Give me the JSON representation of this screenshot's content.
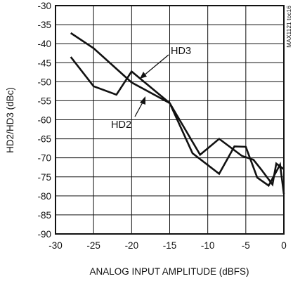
{
  "chart_data": {
    "type": "line",
    "xlabel": "ANALOG INPUT AMPLITUDE (dBFS)",
    "ylabel": "HD2/HD3 (dBc)",
    "xlim": [
      -30,
      0
    ],
    "ylim": [
      -90,
      -30
    ],
    "x_ticks": [
      -30,
      -25,
      -20,
      -15,
      -10,
      -5,
      0
    ],
    "x_tick_labels": [
      "-30",
      "-25",
      "-20",
      "-15",
      "-10",
      "-5",
      "0"
    ],
    "y_ticks": [
      -30,
      -35,
      -40,
      -45,
      -50,
      -55,
      -60,
      -65,
      -70,
      -75,
      -80,
      -85,
      -90
    ],
    "y_tick_labels": [
      "-30",
      "-35",
      "-40",
      "-45",
      "-50",
      "-55",
      "-60",
      "-65",
      "-70",
      "-75",
      "-80",
      "-85",
      "-90"
    ],
    "grid": true,
    "note": "MAX1121 toc16",
    "series": [
      {
        "name": "HD3",
        "x": [
          -28,
          -25,
          -20,
          -15,
          -11,
          -8.5,
          -5.5,
          -4,
          -3,
          -1.5,
          -1,
          0
        ],
        "y": [
          -37.2,
          -41.2,
          -50.2,
          -55.6,
          -69.2,
          -65.0,
          -69.5,
          -70.5,
          -73.0,
          -77.0,
          -71.5,
          -73.0
        ]
      },
      {
        "name": "HD2",
        "x": [
          -28,
          -25,
          -22,
          -20,
          -15,
          -12,
          -8.5,
          -6.5,
          -5,
          -3.5,
          -2,
          -0.5,
          0
        ],
        "y": [
          -43.5,
          -51.2,
          -53.4,
          -47.3,
          -55.6,
          -68.8,
          -74.2,
          -67.0,
          -67.1,
          -75.2,
          -77.3,
          -71.8,
          -79.5
        ]
      }
    ]
  }
}
